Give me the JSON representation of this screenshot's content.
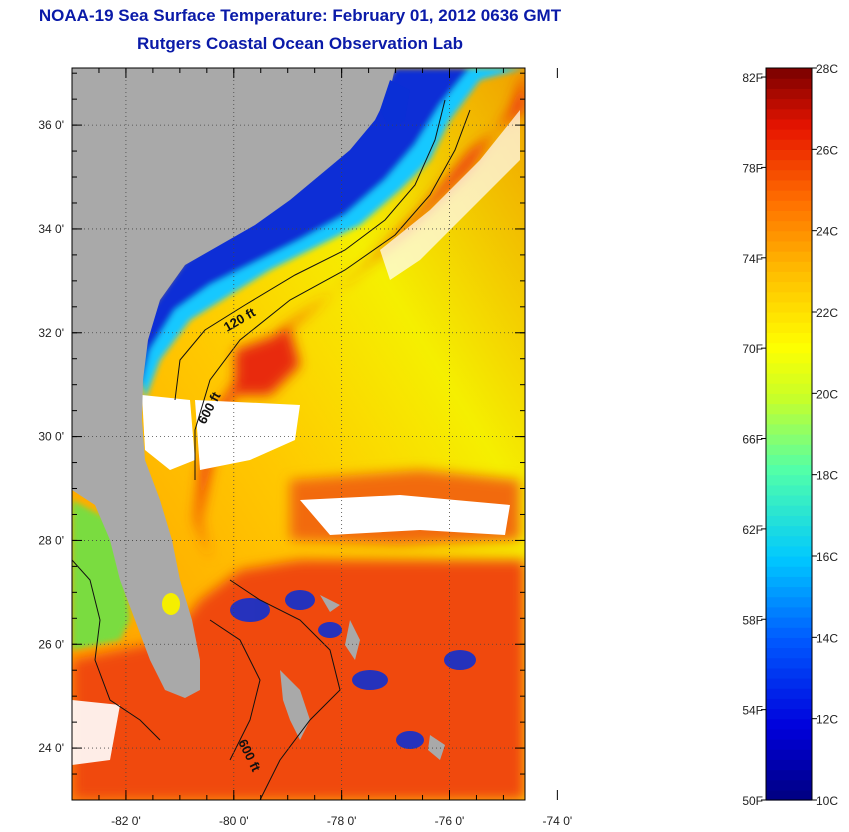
{
  "header": {
    "title": "NOAA-19 Sea Surface Temperature:  February 01, 2012 0636 GMT",
    "subtitle": "Rutgers Coastal Ocean Observation Lab"
  },
  "map": {
    "lat_labels": [
      "24 0'",
      "26 0'",
      "28 0'",
      "30 0'",
      "32 0'",
      "34 0'",
      "36 0'"
    ],
    "lat_values": [
      24,
      26,
      28,
      30,
      32,
      34,
      36
    ],
    "lon_labels": [
      "-82 0'",
      "-80 0'",
      "-78 0'",
      "-76 0'",
      "-74 0'"
    ],
    "lon_values": [
      -82,
      -80,
      -78,
      -76,
      -74
    ],
    "lon_range": [
      -83,
      -74.6
    ],
    "lat_range": [
      23,
      37.1
    ],
    "contours": [
      {
        "label": "120 ft"
      },
      {
        "label": "600 ft"
      },
      {
        "label": "600 ft"
      }
    ],
    "colors": {
      "land": "#a9a9a9",
      "cloud": "#ffffff",
      "cold": "#0a2fd6",
      "cool": "#19c8ff",
      "mid": "#f4f000",
      "warm": "#ff8a00",
      "hot": "#e62010"
    }
  },
  "colorbar": {
    "fahrenheit_labels": [
      "82F",
      "78F",
      "74F",
      "70F",
      "66F",
      "62F",
      "58F",
      "54F",
      "50F"
    ],
    "fahrenheit_values": [
      82,
      78,
      74,
      70,
      66,
      62,
      58,
      54,
      50
    ],
    "celsius_labels": [
      "28C",
      "26C",
      "24C",
      "22C",
      "20C",
      "18C",
      "16C",
      "14C",
      "12C",
      "10C"
    ],
    "celsius_values": [
      28,
      26,
      24,
      22,
      20,
      18,
      16,
      14,
      12,
      10
    ],
    "range_c": [
      10,
      28
    ]
  }
}
